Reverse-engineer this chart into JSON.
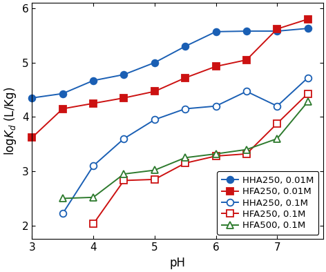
{
  "series": [
    {
      "label": "HHA250, 0.01M",
      "color": "#1a5fb4",
      "marker": "o",
      "filled": true,
      "x": [
        3.0,
        3.5,
        4.0,
        4.5,
        5.0,
        5.5,
        6.0,
        6.5,
        7.0,
        7.5
      ],
      "y": [
        4.35,
        4.43,
        4.67,
        4.78,
        5.0,
        5.3,
        5.57,
        5.58,
        5.58,
        5.63
      ]
    },
    {
      "label": "HFA250, 0.01M",
      "color": "#cc1111",
      "marker": "s",
      "filled": true,
      "x": [
        3.0,
        3.5,
        4.0,
        4.5,
        5.0,
        5.5,
        6.0,
        6.5,
        7.0,
        7.5
      ],
      "y": [
        3.62,
        4.15,
        4.25,
        4.35,
        4.47,
        4.72,
        4.93,
        5.05,
        5.62,
        5.8
      ]
    },
    {
      "label": "HHA250, 0.1M",
      "color": "#1a5fb4",
      "marker": "o",
      "filled": false,
      "x": [
        3.5,
        4.0,
        4.5,
        5.0,
        5.5,
        6.0,
        6.5,
        7.0,
        7.5
      ],
      "y": [
        2.22,
        3.1,
        3.6,
        3.95,
        4.15,
        4.2,
        4.47,
        4.2,
        4.72
      ]
    },
    {
      "label": "HFA250, 0.1M",
      "color": "#cc1111",
      "marker": "s",
      "filled": false,
      "x": [
        4.0,
        4.5,
        5.0,
        5.5,
        6.0,
        6.5,
        7.0,
        7.5
      ],
      "y": [
        2.03,
        2.83,
        2.85,
        3.15,
        3.28,
        3.32,
        3.88,
        4.43
      ]
    },
    {
      "label": "HFA500, 0.1M",
      "color": "#2d7a2d",
      "marker": "^",
      "filled": false,
      "x": [
        3.5,
        4.0,
        4.5,
        5.0,
        5.5,
        6.0,
        6.5,
        7.0,
        7.5
      ],
      "y": [
        2.5,
        2.52,
        2.95,
        3.02,
        3.25,
        3.32,
        3.4,
        3.6,
        4.28
      ]
    }
  ],
  "xlabel": "pH",
  "ylabel": "log$K_d$ (L/Kg)",
  "xlim": [
    3.0,
    7.75
  ],
  "ylim": [
    1.75,
    6.1
  ],
  "xticks": [
    3,
    4,
    5,
    6,
    7
  ],
  "yticks": [
    2,
    3,
    4,
    5,
    6
  ],
  "legend_loc": "lower right",
  "markersize": 7,
  "linewidth": 1.4,
  "legend_fontsize": 9.5
}
